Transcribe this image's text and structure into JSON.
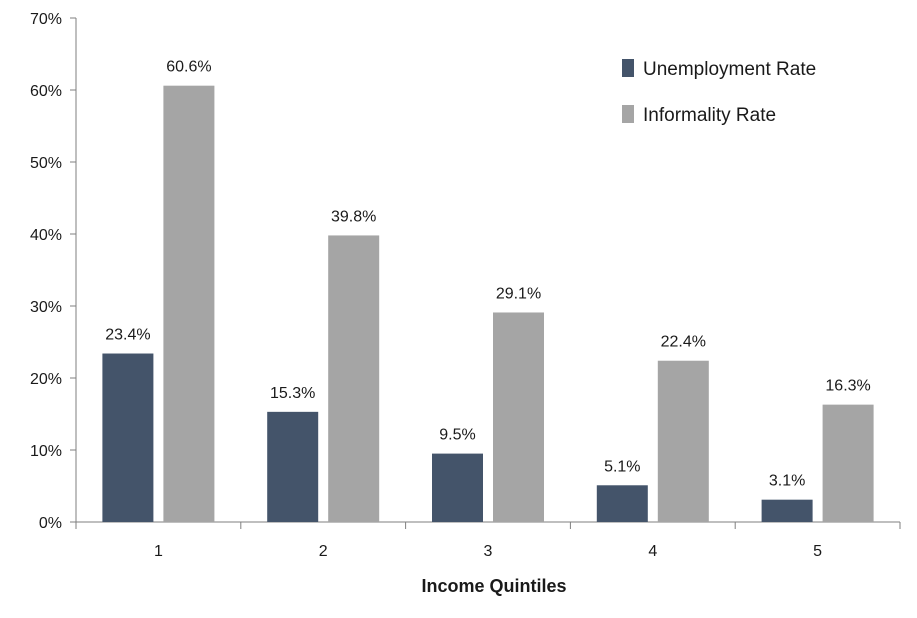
{
  "chart_data": {
    "type": "bar",
    "categories": [
      "1",
      "2",
      "3",
      "4",
      "5"
    ],
    "series": [
      {
        "name": "Unemployment Rate",
        "color": "#44546a",
        "values": [
          23.4,
          15.3,
          9.5,
          5.1,
          3.1
        ],
        "labels": [
          "23.4%",
          "15.3%",
          "9.5%",
          "5.1%",
          "3.1%"
        ]
      },
      {
        "name": "Informality Rate",
        "color": "#a5a5a5",
        "values": [
          60.6,
          39.8,
          29.1,
          22.4,
          16.3
        ],
        "labels": [
          "60.6%",
          "39.8%",
          "29.1%",
          "22.4%",
          "16.3%"
        ]
      }
    ],
    "xlabel": "Income Quintiles",
    "ylabel": "",
    "ylim": [
      0,
      70
    ],
    "yticks": [
      0,
      10,
      20,
      30,
      40,
      50,
      60,
      70
    ],
    "ytick_labels": [
      "0%",
      "10%",
      "20%",
      "30%",
      "40%",
      "50%",
      "60%",
      "70%"
    ],
    "grid": false,
    "legend_position": "top-right"
  }
}
